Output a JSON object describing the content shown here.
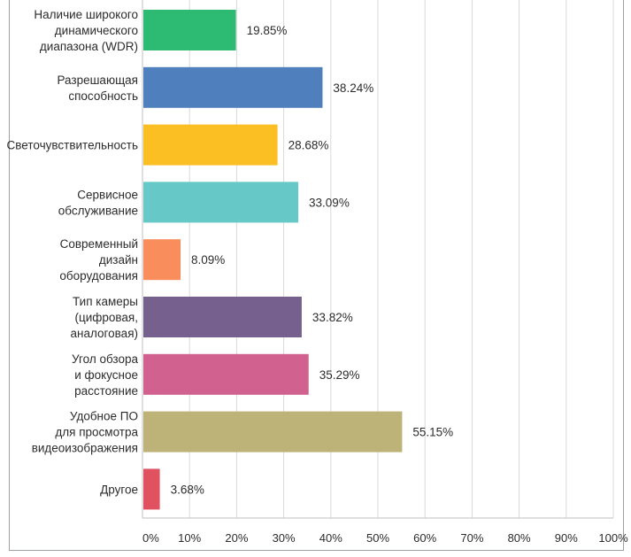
{
  "chart_data": {
    "type": "bar",
    "orientation": "horizontal",
    "categories": [
      "Наличие широкого динамического диапазона (WDR)",
      "Разрешающая способность",
      "Светочувствительность",
      "Сервисное обслуживание",
      "Современный дизайн оборудования",
      "Тип камеры (цифровая, аналоговая)",
      "Угол обзора и фокусное расстояние",
      "Удобное ПО для просмотра видеоизображения",
      "Другое"
    ],
    "category_lines": [
      [
        "Наличие широкого",
        "динамического",
        "диапазона (WDR)"
      ],
      [
        "Разрешающая",
        "способность"
      ],
      [
        "Светочувствительность"
      ],
      [
        "Сервисное",
        "обслуживание"
      ],
      [
        "Современный",
        "дизайн",
        "оборудования"
      ],
      [
        "Тип камеры",
        "(цифровая,",
        "аналоговая)"
      ],
      [
        "Угол обзора",
        "и фокусное",
        "расстояние"
      ],
      [
        "Удобное ПО",
        "для просмотра",
        "видеоизображения"
      ],
      [
        "Другое"
      ]
    ],
    "values": [
      19.85,
      38.24,
      28.68,
      33.09,
      8.09,
      33.82,
      35.29,
      55.15,
      3.68
    ],
    "value_labels": [
      "19.85%",
      "38.24%",
      "28.68%",
      "33.09%",
      "8.09%",
      "33.82%",
      "35.29%",
      "55.15%",
      "3.68%"
    ],
    "colors": [
      "#2dbb74",
      "#4f80bd",
      "#fbbf24",
      "#66c9c8",
      "#f98d5c",
      "#76608e",
      "#d1628f",
      "#bdb277",
      "#e0525f"
    ],
    "xlim": [
      0,
      100
    ],
    "xticks": [
      0,
      10,
      20,
      30,
      40,
      50,
      60,
      70,
      80,
      90,
      100
    ],
    "xtick_labels": [
      "0%",
      "10%",
      "20%",
      "30%",
      "40%",
      "50%",
      "60%",
      "70%",
      "80%",
      "90%",
      "100%"
    ],
    "grid": true,
    "title": "",
    "xlabel": "",
    "ylabel": ""
  }
}
